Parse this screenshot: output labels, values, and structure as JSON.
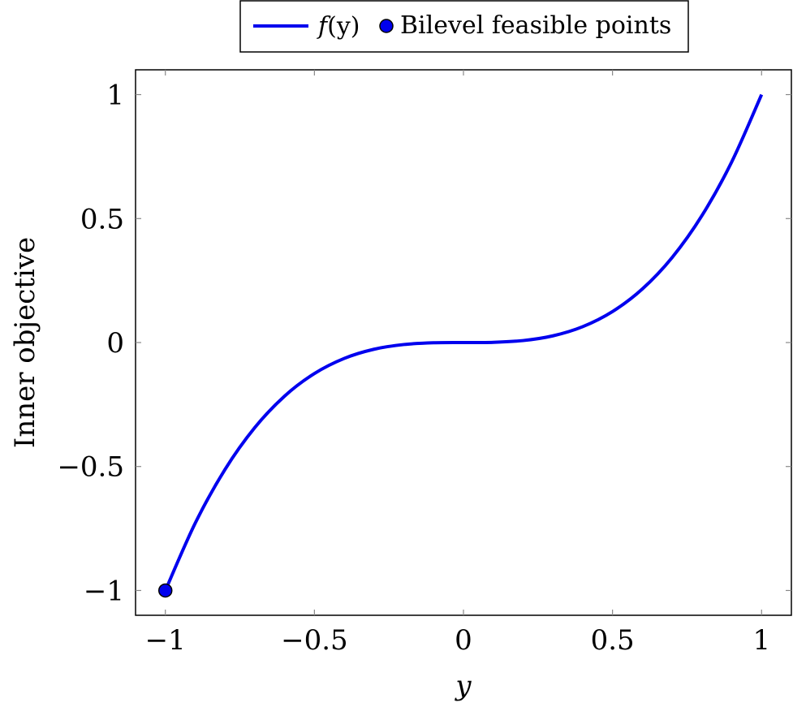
{
  "chart_data": {
    "type": "line",
    "xlabel": "y",
    "ylabel": "Inner objective",
    "xlim": [
      -1.1,
      1.1
    ],
    "ylim": [
      -1.1,
      1.1
    ],
    "x_ticks": [
      -1,
      -0.5,
      0,
      0.5,
      1
    ],
    "y_ticks": [
      -1,
      -0.5,
      0,
      0.5,
      1
    ],
    "x_tick_labels": [
      "−1",
      "−0.5",
      "0",
      "0.5",
      "1"
    ],
    "y_tick_labels": [
      "−1",
      "−0.5",
      "0",
      "0.5",
      "1"
    ],
    "grid": false,
    "legend_position": "top-center, above plot",
    "series": [
      {
        "name": "f(y)",
        "kind": "line",
        "color": "#0000ee",
        "x": [
          -1,
          -0.9,
          -0.8,
          -0.7,
          -0.6,
          -0.5,
          -0.4,
          -0.3,
          -0.2,
          -0.1,
          0,
          0.1,
          0.2,
          0.3,
          0.4,
          0.5,
          0.6,
          0.7,
          0.8,
          0.9,
          1
        ],
        "y": [
          -1,
          -0.729,
          -0.512,
          -0.343,
          -0.216,
          -0.125,
          -0.064,
          -0.027,
          -0.008,
          -0.001,
          0,
          0.001,
          0.008,
          0.027,
          0.064,
          0.125,
          0.216,
          0.343,
          0.512,
          0.729,
          1
        ]
      },
      {
        "name": "Bilevel feasible points",
        "kind": "scatter",
        "color": "#0000ee",
        "x": [
          -1
        ],
        "y": [
          -1
        ]
      }
    ],
    "legend": {
      "line_label_func": "f",
      "line_label_arg": "(y)",
      "marker_label": "Bilevel feasible points"
    }
  }
}
